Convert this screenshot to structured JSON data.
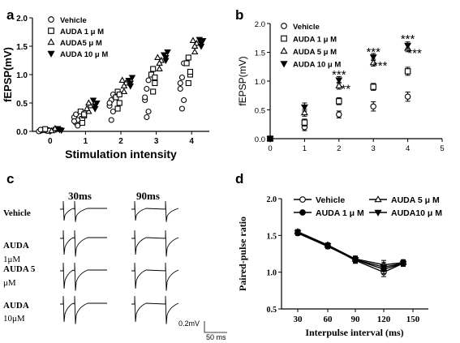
{
  "chart_data": [
    {
      "panel": "a",
      "type": "scatter",
      "ylabel": "fEPSP(mV)",
      "xlabel": "Stimulation intensity",
      "xlim": [
        -0.5,
        4.5
      ],
      "ylim": [
        0,
        2.0
      ],
      "x_ticks": [
        "0",
        "1",
        "2",
        "3",
        "4"
      ],
      "y_ticks": [
        "0.0",
        "0.5",
        "1.0",
        "1.5",
        "2.0"
      ],
      "legend_position": "top-left",
      "series": [
        {
          "name": "Vehicle",
          "marker": "circle",
          "points": [
            [
              0,
              0.01
            ],
            [
              0,
              0.02
            ],
            [
              0,
              0.0
            ],
            [
              0,
              0.03
            ],
            [
              1,
              0.15
            ],
            [
              1,
              0.2
            ],
            [
              1,
              0.25
            ],
            [
              1,
              0.3
            ],
            [
              1,
              0.1
            ],
            [
              1,
              0.18
            ],
            [
              2,
              0.2
            ],
            [
              2,
              0.35
            ],
            [
              2,
              0.45
            ],
            [
              2,
              0.55
            ],
            [
              2,
              0.65
            ],
            [
              2,
              0.5
            ],
            [
              3,
              0.25
            ],
            [
              3,
              0.35
            ],
            [
              3,
              0.55
            ],
            [
              3,
              0.75
            ],
            [
              3,
              0.9
            ],
            [
              3,
              0.6
            ],
            [
              4,
              0.4
            ],
            [
              4,
              0.55
            ],
            [
              4,
              0.75
            ],
            [
              4,
              0.95
            ],
            [
              4,
              1.2
            ],
            [
              4,
              0.85
            ]
          ]
        },
        {
          "name": "AUDA 1 μ M",
          "marker": "square",
          "points": [
            [
              0,
              0.02
            ],
            [
              0,
              0.01
            ],
            [
              0,
              0.04
            ],
            [
              1,
              0.22
            ],
            [
              1,
              0.28
            ],
            [
              1,
              0.35
            ],
            [
              1,
              0.15
            ],
            [
              1,
              0.3
            ],
            [
              2,
              0.4
            ],
            [
              2,
              0.5
            ],
            [
              2,
              0.6
            ],
            [
              2,
              0.7
            ],
            [
              2,
              0.65
            ],
            [
              3,
              0.7
            ],
            [
              3,
              0.85
            ],
            [
              3,
              1.0
            ],
            [
              3,
              1.1
            ],
            [
              3,
              0.95
            ],
            [
              4,
              0.85
            ],
            [
              4,
              1.0
            ],
            [
              4,
              1.2
            ],
            [
              4,
              1.3
            ],
            [
              4,
              1.05
            ]
          ]
        },
        {
          "name": "AUDA5 μ M",
          "marker": "triangle-up",
          "points": [
            [
              0,
              0.02
            ],
            [
              0,
              0.05
            ],
            [
              0,
              0.01
            ],
            [
              1,
              0.35
            ],
            [
              1,
              0.45
            ],
            [
              1,
              0.4
            ],
            [
              1,
              0.5
            ],
            [
              2,
              0.7
            ],
            [
              2,
              0.85
            ],
            [
              2,
              0.9
            ],
            [
              2,
              0.8
            ],
            [
              3,
              1.1
            ],
            [
              3,
              1.25
            ],
            [
              3,
              1.3
            ],
            [
              3,
              1.2
            ],
            [
              4,
              1.4
            ],
            [
              4,
              1.55
            ],
            [
              4,
              1.6
            ],
            [
              4,
              1.5
            ]
          ]
        },
        {
          "name": "AUDA 10 μ M",
          "marker": "triangle-down",
          "points": [
            [
              0,
              0.03
            ],
            [
              0,
              0.02
            ],
            [
              0,
              0.05
            ],
            [
              1,
              0.4
            ],
            [
              1,
              0.5
            ],
            [
              1,
              0.55
            ],
            [
              1,
              0.45
            ],
            [
              2,
              0.8
            ],
            [
              2,
              0.95
            ],
            [
              2,
              0.9
            ],
            [
              2,
              0.85
            ],
            [
              3,
              1.25
            ],
            [
              3,
              1.4
            ],
            [
              3,
              1.35
            ],
            [
              3,
              1.3
            ],
            [
              4,
              1.55
            ],
            [
              4,
              1.6
            ],
            [
              4,
              1.62
            ],
            [
              4,
              1.5
            ]
          ]
        }
      ]
    },
    {
      "panel": "b",
      "type": "scatter",
      "ylabel": "fEPSP(mV)",
      "xlim": [
        0,
        5
      ],
      "ylim": [
        0,
        2.0
      ],
      "x_ticks": [
        "0",
        "1",
        "2",
        "3",
        "4",
        "5"
      ],
      "y_ticks": [
        "0.0",
        "0.5",
        "1.0",
        "1.5",
        "2.0"
      ],
      "legend_position": "top-left",
      "series": [
        {
          "name": "Vehicle",
          "marker": "circle",
          "x": [
            0,
            1,
            2,
            3,
            4
          ],
          "y": [
            0.0,
            0.2,
            0.42,
            0.56,
            0.73
          ],
          "err": [
            0.02,
            0.06,
            0.06,
            0.08,
            0.08
          ]
        },
        {
          "name": "AUDA 1 μ M",
          "marker": "square",
          "x": [
            0,
            1,
            2,
            3,
            4
          ],
          "y": [
            0.0,
            0.28,
            0.65,
            0.9,
            1.17
          ],
          "err": [
            0.02,
            0.06,
            0.06,
            0.06,
            0.07
          ]
        },
        {
          "name": "AUDA 5 μ M",
          "marker": "triangle-up",
          "x": [
            0,
            1,
            2,
            3,
            4
          ],
          "y": [
            0.0,
            0.45,
            0.92,
            1.32,
            1.57
          ],
          "err": [
            0.02,
            0.06,
            0.06,
            0.06,
            0.06
          ]
        },
        {
          "name": "AUDA 10 μ M",
          "marker": "triangle-down",
          "x": [
            0,
            1,
            2,
            3,
            4
          ],
          "y": [
            0.0,
            0.55,
            1.02,
            1.42,
            1.62
          ],
          "err": [
            0.02,
            0.07,
            0.06,
            0.06,
            0.06
          ]
        }
      ],
      "annotations": [
        {
          "text": "***",
          "x": 2,
          "y": 1.13
        },
        {
          "text": "**",
          "x": 2.2,
          "y": 0.88
        },
        {
          "text": "***",
          "x": 3,
          "y": 1.52
        },
        {
          "text": "***",
          "x": 3.2,
          "y": 1.28
        },
        {
          "text": "***",
          "x": 4,
          "y": 1.75
        },
        {
          "text": "***",
          "x": 4.2,
          "y": 1.5
        }
      ]
    },
    {
      "panel": "d",
      "type": "line",
      "ylabel": "Paired-pulse ratio",
      "xlabel": "Interpulse interval (ms)",
      "x_ticks": [
        "30",
        "60",
        "90",
        "120",
        "150"
      ],
      "y_ticks": [
        "0.5",
        "1.0",
        "1.5",
        "2.0"
      ],
      "ylim": [
        0.5,
        2.0
      ],
      "legend_position": "top",
      "series": [
        {
          "name": "Vehicle",
          "marker": "circle-open",
          "x": [
            30,
            60,
            90,
            120,
            140
          ],
          "y": [
            1.54,
            1.36,
            1.16,
            1.0,
            1.12
          ],
          "err": [
            0.03,
            0.03,
            0.04,
            0.06,
            0.04
          ]
        },
        {
          "name": "AUDA 1 μ M",
          "marker": "circle-filled",
          "x": [
            30,
            60,
            90,
            120,
            140
          ],
          "y": [
            1.53,
            1.35,
            1.17,
            1.04,
            1.12
          ],
          "err": [
            0.03,
            0.03,
            0.04,
            0.06,
            0.04
          ]
        },
        {
          "name": "AUDA 5 μ M",
          "marker": "triangle-up",
          "x": [
            30,
            60,
            90,
            120,
            140
          ],
          "y": [
            1.55,
            1.37,
            1.18,
            1.1,
            1.13
          ],
          "err": [
            0.03,
            0.03,
            0.04,
            0.06,
            0.04
          ]
        },
        {
          "name": "AUDA10 μ M",
          "marker": "triangle-down",
          "x": [
            30,
            60,
            90,
            120,
            140
          ],
          "y": [
            1.54,
            1.36,
            1.17,
            1.07,
            1.12
          ],
          "err": [
            0.03,
            0.03,
            0.04,
            0.06,
            0.04
          ]
        }
      ]
    }
  ],
  "panels": {
    "a": "a",
    "b": "b",
    "c": "c",
    "d": "d"
  },
  "traces": {
    "headers": [
      "30ms",
      "90ms"
    ],
    "rows": [
      {
        "line1": "Vehicle",
        "line2": ""
      },
      {
        "line1": "AUDA",
        "line2": "1μM"
      },
      {
        "line1": "AUDA 5",
        "line2": "μM"
      },
      {
        "line1": "AUDA",
        "line2": "10μM"
      }
    ],
    "scale_voltage": "0.2mV",
    "scale_time": "50 ms"
  }
}
